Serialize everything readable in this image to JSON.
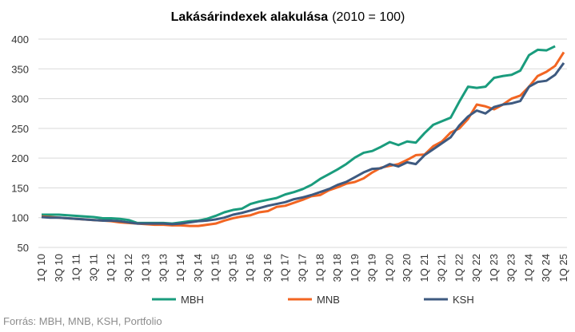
{
  "chart_data": {
    "type": "line",
    "title": "Lakásárindexek alakulása",
    "subtitle": "(2010 = 100)",
    "source": "Forrás: MBH, MNB, KSH, Portfolio",
    "categories": [
      "1Q 10",
      null,
      "3Q 10",
      null,
      "1Q 11",
      null,
      "3Q 11",
      null,
      "1Q 12",
      null,
      "3Q 12",
      null,
      "1Q 13",
      null,
      "3Q 13",
      null,
      "1Q 14",
      null,
      "3Q 14",
      null,
      "1Q 15",
      null,
      "3Q 15",
      null,
      "1Q 16",
      null,
      "3Q 16",
      null,
      "1Q 17",
      null,
      "3Q 17",
      null,
      "1Q 18",
      null,
      "3Q 18",
      null,
      "1Q 19",
      null,
      "3Q 19",
      null,
      "1Q 20",
      null,
      "3Q 20",
      null,
      "1Q 21",
      null,
      "3Q 21",
      null,
      "1Q 22",
      null,
      "3Q 22",
      null,
      "1Q 23",
      null,
      "3Q 23",
      null,
      "1Q 24",
      null,
      "3Q 24",
      null,
      "1Q 25"
    ],
    "series": [
      {
        "name": "MBH",
        "color": "#1a9c7d",
        "values": [
          105,
          105,
          105,
          104,
          103,
          102,
          101,
          99,
          99,
          98,
          96,
          91,
          91,
          91,
          91,
          90,
          92,
          94,
          95,
          98,
          103,
          109,
          113,
          115,
          123,
          127,
          130,
          133,
          139,
          143,
          148,
          155,
          165,
          173,
          181,
          190,
          201,
          209,
          212,
          219,
          227,
          222,
          228,
          226,
          242,
          256,
          262,
          268,
          295,
          320,
          318,
          320,
          335,
          338,
          340,
          347,
          373,
          382,
          381,
          388,
          null
        ]
      },
      {
        "name": "MNB",
        "color": "#f26522",
        "values": [
          102,
          101,
          100,
          99,
          98,
          97,
          96,
          95,
          94,
          92,
          91,
          90,
          89,
          88,
          88,
          87,
          87,
          86,
          86,
          88,
          90,
          95,
          99,
          102,
          104,
          109,
          111,
          118,
          120,
          125,
          130,
          136,
          138,
          146,
          151,
          157,
          160,
          166,
          176,
          184,
          187,
          190,
          197,
          205,
          206,
          220,
          228,
          243,
          250,
          266,
          290,
          287,
          282,
          290,
          300,
          305,
          320,
          338,
          345,
          355,
          378
        ]
      },
      {
        "name": "KSH",
        "color": "#3e5a80",
        "values": [
          101,
          100,
          100,
          99,
          98,
          97,
          96,
          95,
          95,
          94,
          92,
          90,
          90,
          90,
          90,
          89,
          90,
          92,
          94,
          95,
          97,
          100,
          105,
          108,
          112,
          116,
          120,
          123,
          126,
          131,
          134,
          138,
          143,
          148,
          155,
          160,
          168,
          176,
          182,
          183,
          190,
          186,
          193,
          190,
          205,
          215,
          225,
          235,
          255,
          270,
          280,
          275,
          286,
          290,
          292,
          296,
          320,
          328,
          330,
          340,
          360
        ]
      }
    ],
    "ylim": [
      50,
      400
    ],
    "yticks": [
      50,
      100,
      150,
      200,
      250,
      300,
      350,
      400
    ],
    "grid": true
  }
}
